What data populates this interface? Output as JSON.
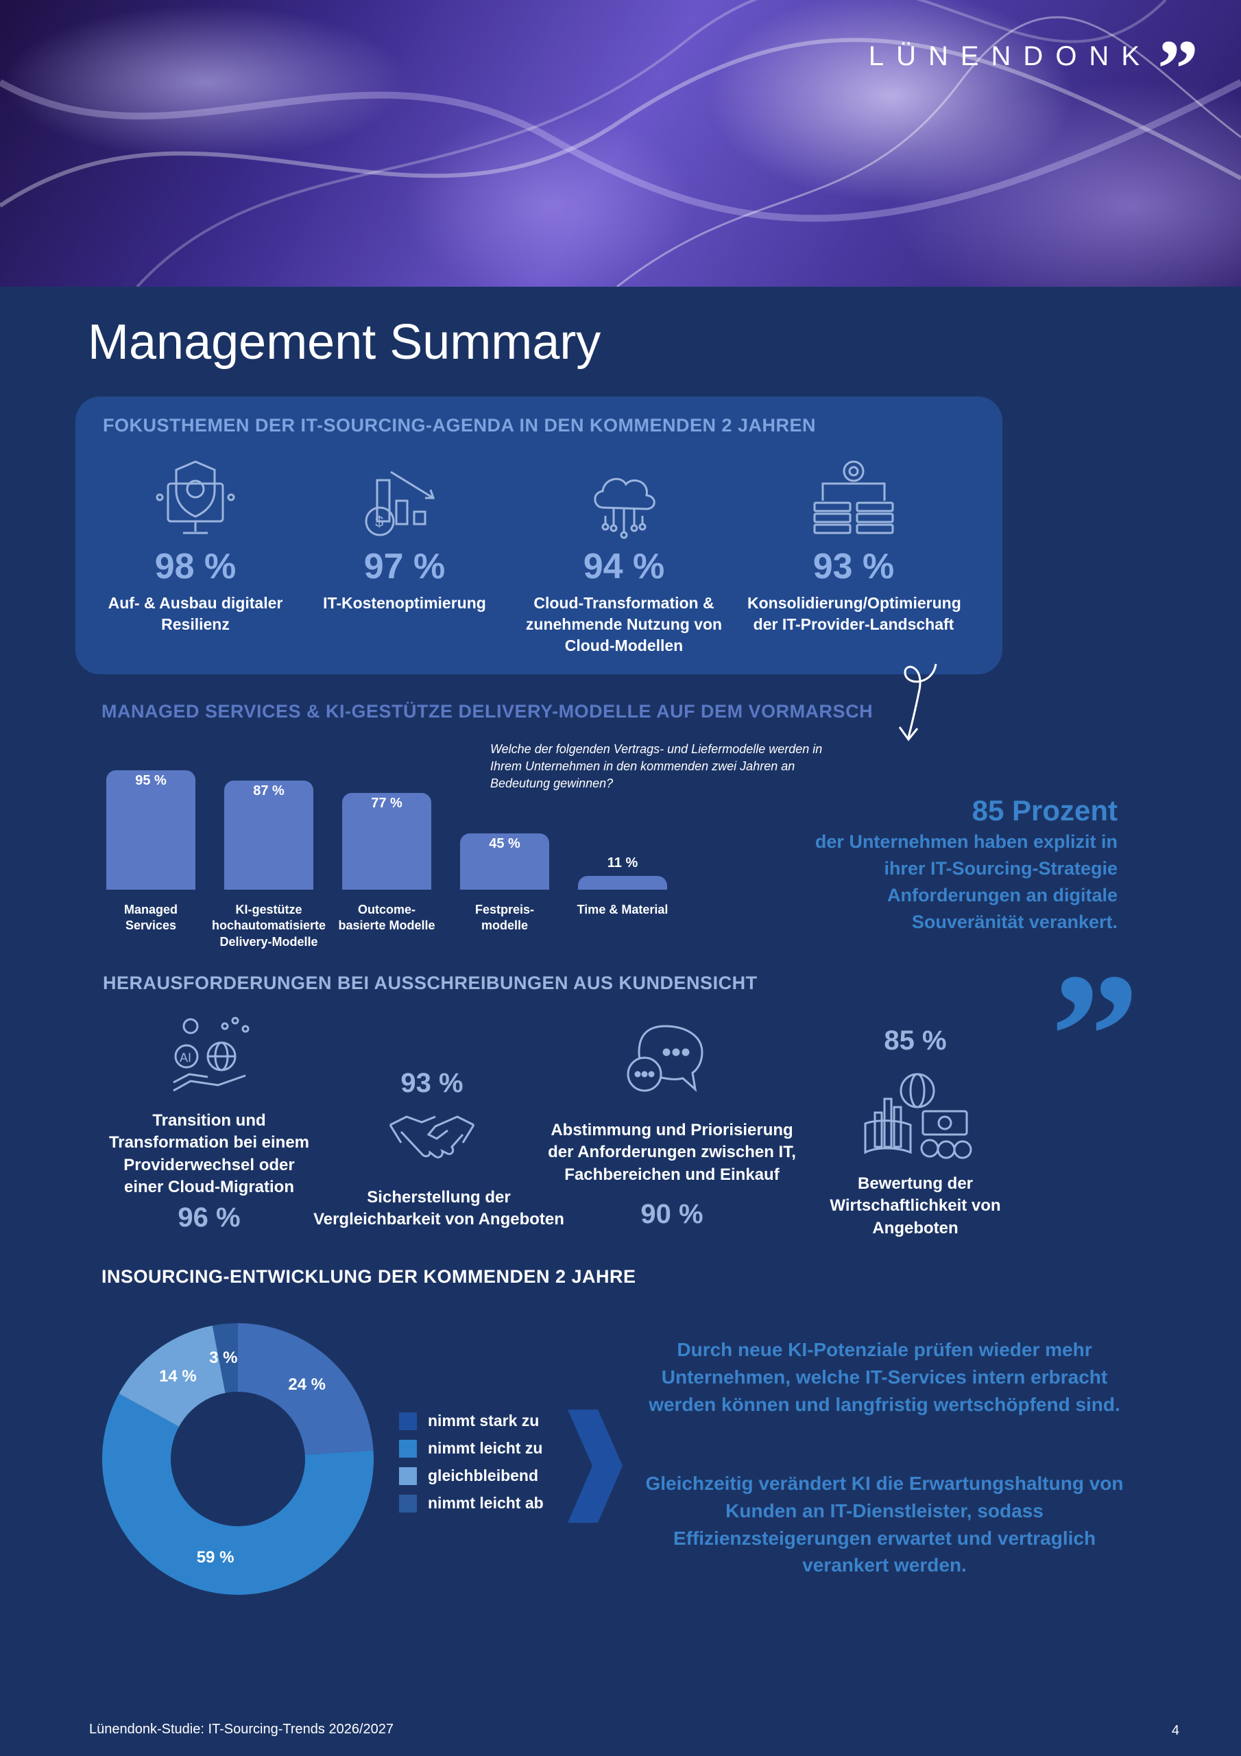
{
  "header": {
    "logo": "LÜNENDONK",
    "logo_mark": "”"
  },
  "title": "Management Summary",
  "focus": {
    "heading": "FOKUSTHEMEN DER IT-SOURCING-AGENDA IN DEN KOMMENDEN 2 JAHREN",
    "items": [
      {
        "pct": "98 %",
        "label": "Auf- & Ausbau digitaler Resilienz",
        "icon": "shield-monitor-icon"
      },
      {
        "pct": "97 %",
        "label": "IT-Kostenoptimierung",
        "icon": "cost-chart-icon"
      },
      {
        "pct": "94 %",
        "label": "Cloud-Transformation & zunehmende Nutzung von Cloud-Modellen",
        "icon": "cloud-network-icon"
      },
      {
        "pct": "93 %",
        "label": "Konsolidierung/Optimierung der IT-Provider-Landschaft",
        "icon": "server-gear-icon"
      }
    ]
  },
  "managed": {
    "heading": "MANAGED SERVICES & KI-GESTÜTZE DELIVERY-MODELLE AUF DEM VORMARSCH",
    "question": "Welche der folgenden Vertrags- und Liefermodelle werden in Ihrem Unternehmen in den kommenden zwei Jahren an Bedeutung gewinnen?"
  },
  "chart_data": [
    {
      "type": "bar",
      "categories": [
        "Managed Services",
        "KI-gestütze hochautomatisierte Delivery-Modelle",
        "Outcome-basierte Modelle",
        "Festpreis-modelle",
        "Time & Material"
      ],
      "category_labels": [
        "Managed\nServices",
        "KI-gestütze\nhochautomatisierte\nDelivery-Modelle",
        "Outcome-\nbasierte Modelle",
        "Festpreis-\nmodelle",
        "Time & Material"
      ],
      "values": [
        95,
        87,
        77,
        45,
        11
      ],
      "value_labels": [
        "95 %",
        "87 %",
        "77 %",
        "45 %",
        "11 %"
      ],
      "ylim": [
        0,
        100
      ],
      "color": "#5b78c4"
    },
    {
      "type": "pie",
      "title": "INSOURCING-ENTWICKLUNG DER KOMMENDEN 2 JAHRE",
      "categories": [
        "nimmt stark zu",
        "nimmt leicht zu",
        "gleichbleibend",
        "nimmt leicht ab"
      ],
      "values": [
        24,
        59,
        14,
        3
      ],
      "value_labels": [
        "24 %",
        "59 %",
        "14 %",
        "3 %"
      ],
      "colors": [
        "#3f6db8",
        "#2f83cc",
        "#6ea4da",
        "#2c5a9c"
      ],
      "legend_colors": [
        "#1f4fa0",
        "#2f83cc",
        "#6ea4da",
        "#2c5a9c"
      ],
      "donut": true
    }
  ],
  "souveraenitaet": {
    "pct": "85 Prozent",
    "text": "der Unternehmen haben explizit in ihrer IT-Sourcing-Strategie Anforderungen an digitale Souveränität verankert.",
    "quote_mark": "”"
  },
  "challenges": {
    "heading": "HERAUSFORDERUNGEN BEI AUSSCHREIBUNGEN AUS KUNDENSICHT",
    "items": [
      {
        "pct": "96 %",
        "label": "Transition und Transformation bei einem Providerwechsel oder einer Cloud-Migration",
        "icon": "ai-globe-hand-icon"
      },
      {
        "pct": "93 %",
        "label": "Sicherstellung der Vergleichbarkeit von Angeboten",
        "icon": "handshake-icon"
      },
      {
        "pct": "90 %",
        "label": "Abstimmung und Priorisierung der Anforderungen zwischen IT, Fachbereichen und Einkauf",
        "icon": "chat-bubbles-icon"
      },
      {
        "pct": "85 %",
        "label": "Bewertung der Wirtschaftlichkeit von Angeboten",
        "icon": "economy-chart-icon"
      }
    ]
  },
  "insourcing": {
    "heading": "INSOURCING-ENTWICKLUNG DER KOMMENDEN 2 JAHRE",
    "text1": "Durch neue KI-Potenziale prüfen wieder mehr Unternehmen, welche IT-Services intern erbracht werden können und langfristig wertschöpfend sind.",
    "text2": "Gleichzeitig verändert KI die Erwartungshaltung von Kunden an IT-Dienstleister, sodass Effizienzsteigerungen erwartet und vertraglich verankert werden."
  },
  "footer": {
    "source": "Lünendonk-Studie: IT-Sourcing-Trends 2026/2027",
    "page": "4"
  }
}
